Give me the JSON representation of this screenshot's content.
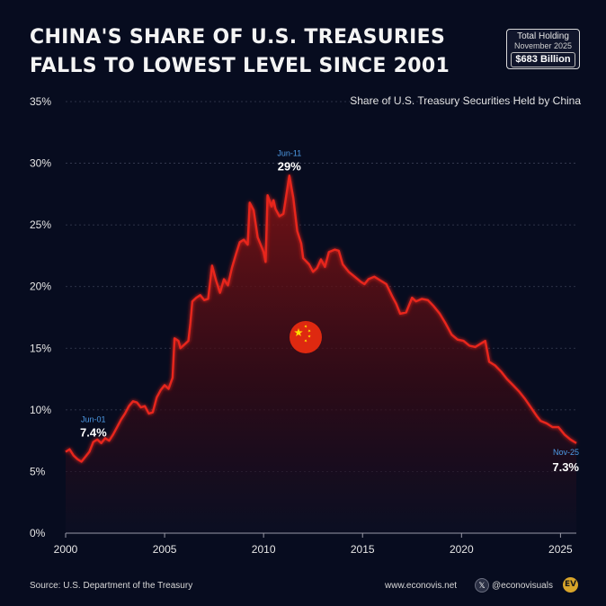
{
  "header": {
    "title_line1": "CHINA'S SHARE OF U.S. TREASURIES",
    "title_line2": "FALLS TO LOWEST LEVEL SINCE 2001"
  },
  "holding": {
    "label": "Total Holding",
    "date": "November 2025",
    "value": "$683 Billion"
  },
  "footer": {
    "source": "Source: U.S. Department of the Treasury",
    "website": "www.econovis.net",
    "x_icon": "x-logo-icon",
    "handle": "@econovisuals",
    "logo_text": "EV"
  },
  "colors": {
    "background": "#070c1f",
    "line": "#e8251f",
    "annotation_date": "#4d9be6",
    "grid": "#3a3f55"
  },
  "chart_data": {
    "type": "area",
    "title": "",
    "subtitle": "Share of U.S. Treasury Securities Held by China",
    "xlabel": "",
    "ylabel": "",
    "xlim": [
      2000,
      2025.8
    ],
    "ylim": [
      0,
      35
    ],
    "x_ticks": [
      2000,
      2005,
      2010,
      2015,
      2020,
      2025
    ],
    "y_ticks": [
      0,
      5,
      10,
      15,
      20,
      25,
      30,
      35
    ],
    "y_tick_labels": [
      "0%",
      "5%",
      "10%",
      "15%",
      "20%",
      "25%",
      "30%",
      "35%"
    ],
    "grid": "horizontal dotted",
    "legend": "none",
    "series": [
      {
        "values": [
          [
            2000.0,
            6.6
          ],
          [
            2000.2,
            6.8
          ],
          [
            2000.4,
            6.3
          ],
          [
            2000.6,
            6.0
          ],
          [
            2000.8,
            5.8
          ],
          [
            2001.0,
            6.2
          ],
          [
            2001.2,
            6.6
          ],
          [
            2001.4,
            7.4
          ],
          [
            2001.6,
            7.6
          ],
          [
            2001.8,
            7.3
          ],
          [
            2002.0,
            7.7
          ],
          [
            2002.2,
            7.5
          ],
          [
            2002.4,
            8.0
          ],
          [
            2002.6,
            8.6
          ],
          [
            2002.8,
            9.2
          ],
          [
            2003.0,
            9.7
          ],
          [
            2003.2,
            10.3
          ],
          [
            2003.4,
            10.7
          ],
          [
            2003.6,
            10.6
          ],
          [
            2003.8,
            10.2
          ],
          [
            2004.0,
            10.3
          ],
          [
            2004.2,
            9.7
          ],
          [
            2004.4,
            9.8
          ],
          [
            2004.6,
            11.0
          ],
          [
            2004.8,
            11.6
          ],
          [
            2005.0,
            12.0
          ],
          [
            2005.2,
            11.7
          ],
          [
            2005.4,
            12.6
          ],
          [
            2005.5,
            15.8
          ],
          [
            2005.7,
            15.6
          ],
          [
            2005.8,
            15.0
          ],
          [
            2006.0,
            15.3
          ],
          [
            2006.2,
            15.6
          ],
          [
            2006.3,
            17.0
          ],
          [
            2006.4,
            18.8
          ],
          [
            2006.6,
            19.1
          ],
          [
            2006.8,
            19.3
          ],
          [
            2007.0,
            18.9
          ],
          [
            2007.2,
            19.0
          ],
          [
            2007.4,
            21.7
          ],
          [
            2007.6,
            20.5
          ],
          [
            2007.8,
            19.5
          ],
          [
            2008.0,
            20.6
          ],
          [
            2008.2,
            20.1
          ],
          [
            2008.4,
            21.5
          ],
          [
            2008.6,
            22.6
          ],
          [
            2008.8,
            23.6
          ],
          [
            2009.0,
            23.8
          ],
          [
            2009.2,
            23.4
          ],
          [
            2009.3,
            26.8
          ],
          [
            2009.5,
            26.2
          ],
          [
            2009.7,
            24.0
          ],
          [
            2009.9,
            23.2
          ],
          [
            2010.0,
            22.8
          ],
          [
            2010.1,
            22.0
          ],
          [
            2010.2,
            27.4
          ],
          [
            2010.4,
            26.5
          ],
          [
            2010.5,
            27.0
          ],
          [
            2010.6,
            26.3
          ],
          [
            2010.8,
            25.7
          ],
          [
            2011.0,
            25.9
          ],
          [
            2011.3,
            29.0
          ],
          [
            2011.5,
            27.2
          ],
          [
            2011.7,
            24.5
          ],
          [
            2011.9,
            23.5
          ],
          [
            2012.0,
            22.3
          ],
          [
            2012.3,
            21.8
          ],
          [
            2012.5,
            21.2
          ],
          [
            2012.7,
            21.5
          ],
          [
            2012.9,
            22.2
          ],
          [
            2013.1,
            21.6
          ],
          [
            2013.3,
            22.8
          ],
          [
            2013.6,
            23.0
          ],
          [
            2013.8,
            22.9
          ],
          [
            2014.0,
            21.8
          ],
          [
            2014.3,
            21.2
          ],
          [
            2014.6,
            20.8
          ],
          [
            2014.9,
            20.4
          ],
          [
            2015.1,
            20.2
          ],
          [
            2015.3,
            20.6
          ],
          [
            2015.6,
            20.8
          ],
          [
            2015.9,
            20.5
          ],
          [
            2016.2,
            20.2
          ],
          [
            2016.5,
            19.2
          ],
          [
            2016.7,
            18.6
          ],
          [
            2016.9,
            17.8
          ],
          [
            2017.2,
            17.9
          ],
          [
            2017.5,
            19.1
          ],
          [
            2017.7,
            18.8
          ],
          [
            2018.0,
            19.0
          ],
          [
            2018.3,
            18.9
          ],
          [
            2018.6,
            18.4
          ],
          [
            2018.9,
            17.8
          ],
          [
            2019.2,
            17.0
          ],
          [
            2019.5,
            16.1
          ],
          [
            2019.8,
            15.7
          ],
          [
            2020.1,
            15.6
          ],
          [
            2020.4,
            15.2
          ],
          [
            2020.7,
            15.1
          ],
          [
            2021.0,
            15.4
          ],
          [
            2021.2,
            15.6
          ],
          [
            2021.4,
            13.9
          ],
          [
            2021.7,
            13.6
          ],
          [
            2022.0,
            13.1
          ],
          [
            2022.3,
            12.5
          ],
          [
            2022.6,
            12.0
          ],
          [
            2022.9,
            11.5
          ],
          [
            2023.2,
            10.9
          ],
          [
            2023.5,
            10.2
          ],
          [
            2023.8,
            9.5
          ],
          [
            2024.0,
            9.1
          ],
          [
            2024.3,
            8.9
          ],
          [
            2024.6,
            8.6
          ],
          [
            2024.9,
            8.6
          ],
          [
            2025.2,
            8.0
          ],
          [
            2025.5,
            7.6
          ],
          [
            2025.8,
            7.3
          ]
        ]
      }
    ],
    "annotations": [
      {
        "x": 2001.4,
        "y": 7.4,
        "date": "Jun-01",
        "value": "7.4%"
      },
      {
        "x": 2011.3,
        "y": 29.0,
        "date": "Jun-11",
        "value": "29%"
      },
      {
        "x": 2025.8,
        "y": 7.3,
        "date": "Nov-25",
        "value": "7.3%"
      }
    ],
    "flag_icon": "china-flag-icon"
  }
}
